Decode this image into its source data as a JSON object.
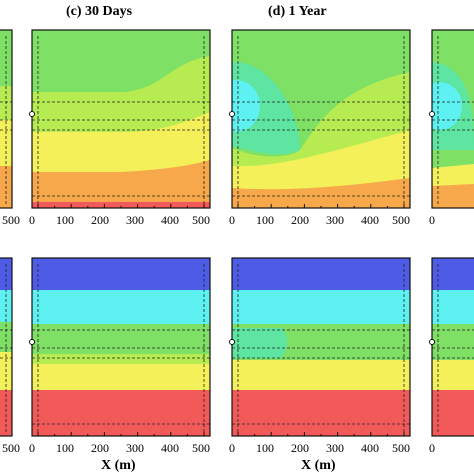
{
  "figure": {
    "panel_titles": [
      "(c)  30 Days",
      "(d)  1 Year"
    ],
    "xlabel": "X (m)"
  },
  "colors": {
    "red": "#f25a5a",
    "orange": "#f7a84b",
    "yellow": "#f3f05a",
    "lime": "#b6ec52",
    "green": "#7ee065",
    "teal": "#5ee5a2",
    "cyan": "#5ef1f1",
    "blue": "#4e5be6"
  },
  "chart_data": [
    {
      "type": "heatmap",
      "panel": "top-left-partial",
      "xticks": [
        "500"
      ],
      "bands": [
        "green",
        "lime",
        "yellow",
        "orange"
      ]
    },
    {
      "type": "heatmap",
      "panel": "(c)  30 Days",
      "title": "(c)  30 Days",
      "xlim": [
        0,
        500
      ],
      "xticks": [
        "0",
        "100",
        "200",
        "300",
        "400",
        "500"
      ],
      "bands": [
        "green",
        "lime",
        "yellow",
        "orange",
        "red"
      ]
    },
    {
      "type": "heatmap",
      "panel": "(d)  1 Year",
      "title": "(d)  1 Year",
      "xlim": [
        0,
        500
      ],
      "xticks": [
        "0",
        "100",
        "200",
        "300",
        "400",
        "500"
      ],
      "bands": [
        "green",
        "teal",
        "cyan",
        "lime",
        "yellow",
        "orange",
        "red"
      ]
    },
    {
      "type": "heatmap",
      "panel": "top-right-partial",
      "xticks": [
        "0"
      ],
      "bands": [
        "green",
        "teal",
        "cyan",
        "yellow",
        "orange"
      ]
    },
    {
      "type": "heatmap",
      "panel": "bottom-left-partial",
      "xticks": [
        "500"
      ],
      "bands": [
        "blue",
        "cyan",
        "green",
        "yellow",
        "red"
      ]
    },
    {
      "type": "heatmap",
      "panel": "bottom (c)",
      "xlim": [
        0,
        500
      ],
      "xticks": [
        "0",
        "100",
        "200",
        "300",
        "400",
        "500"
      ],
      "xlabel": "X (m)",
      "bands": [
        "blue",
        "cyan",
        "green",
        "lime",
        "yellow",
        "red"
      ]
    },
    {
      "type": "heatmap",
      "panel": "bottom (d)",
      "xlim": [
        0,
        500
      ],
      "xticks": [
        "0",
        "100",
        "200",
        "300",
        "400",
        "500"
      ],
      "xlabel": "X (m)",
      "bands": [
        "blue",
        "cyan",
        "teal",
        "green",
        "yellow",
        "red"
      ]
    },
    {
      "type": "heatmap",
      "panel": "bottom-right-partial",
      "xticks": [
        "0"
      ],
      "bands": [
        "blue",
        "cyan",
        "green",
        "yellow",
        "red"
      ]
    }
  ]
}
